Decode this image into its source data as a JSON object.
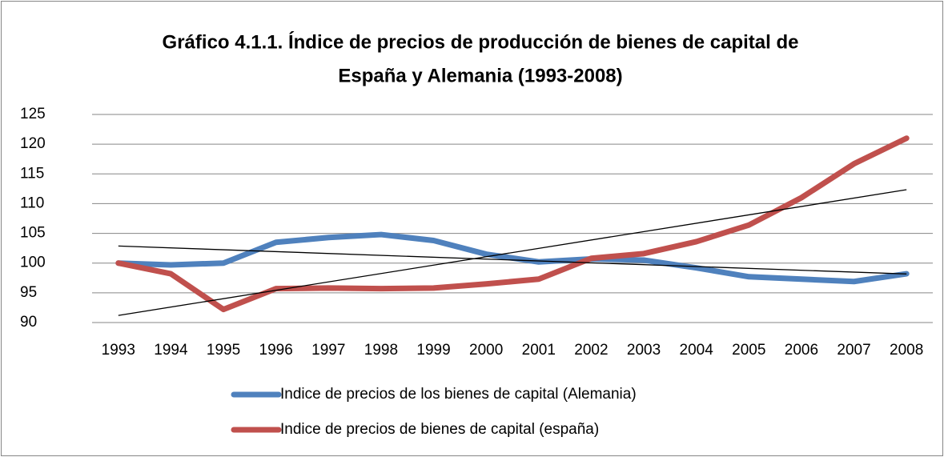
{
  "chart_data": {
    "type": "line",
    "title": [
      "Gráfico 4.1.1. Índice de precios de producción de bienes de capital de",
      "España y Alemania (1993-2008)"
    ],
    "categories": [
      "1993",
      "1994",
      "1995",
      "1996",
      "1997",
      "1998",
      "1999",
      "2000",
      "2001",
      "2002",
      "2003",
      "2004",
      "2005",
      "2006",
      "2007",
      "2008"
    ],
    "series": [
      {
        "name": "Indice de precios de los bienes de capital (Alemania)",
        "color": "#4f81bd",
        "values": [
          100,
          99.7,
          100,
          103.5,
          104.3,
          104.8,
          103.8,
          101.5,
          100.2,
          100.7,
          100.5,
          99.2,
          97.7,
          97.3,
          96.9,
          98.2
        ]
      },
      {
        "name": "Indice de precios de bienes de capital (españa)",
        "color": "#c0504d",
        "values": [
          100,
          98.2,
          92.2,
          95.7,
          95.8,
          95.7,
          95.8,
          96.5,
          97.3,
          100.8,
          101.6,
          103.6,
          106.4,
          111,
          116.7,
          121
        ]
      }
    ],
    "ylim": [
      90,
      125
    ],
    "yticks": [
      90,
      95,
      100,
      105,
      110,
      115,
      120,
      125
    ],
    "grid": true,
    "legend": "bottom",
    "trendline": true
  }
}
